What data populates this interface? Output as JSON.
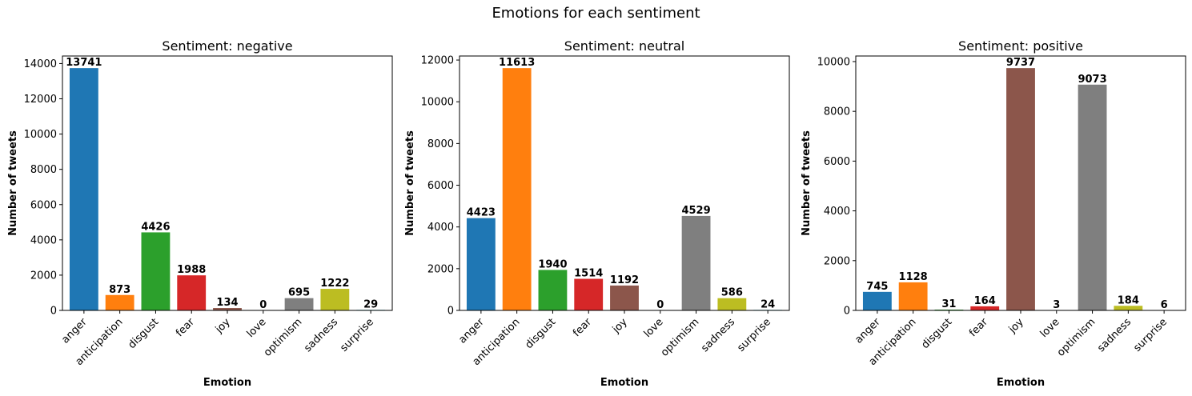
{
  "figure_title": "Emotions for each sentiment",
  "chart_data": [
    {
      "type": "bar",
      "title": "Sentiment: negative",
      "xlabel": "Emotion",
      "ylabel": "Number of tweets",
      "categories": [
        "anger",
        "anticipation",
        "disgust",
        "fear",
        "joy",
        "love",
        "optimism",
        "sadness",
        "surprise"
      ],
      "values": [
        13741,
        873,
        4426,
        1988,
        134,
        0,
        695,
        1222,
        29
      ],
      "ylim": [
        0,
        14428
      ],
      "yticks": [
        0,
        2000,
        4000,
        6000,
        8000,
        10000,
        12000,
        14000
      ],
      "grid": false
    },
    {
      "type": "bar",
      "title": "Sentiment: neutral",
      "xlabel": "Emotion",
      "ylabel": "Number of tweets",
      "categories": [
        "anger",
        "anticipation",
        "disgust",
        "fear",
        "joy",
        "love",
        "optimism",
        "sadness",
        "surprise"
      ],
      "values": [
        4423,
        11613,
        1940,
        1514,
        1192,
        0,
        4529,
        586,
        24
      ],
      "ylim": [
        0,
        12194
      ],
      "yticks": [
        0,
        2000,
        4000,
        6000,
        8000,
        10000,
        12000
      ],
      "grid": false
    },
    {
      "type": "bar",
      "title": "Sentiment: positive",
      "xlabel": "Emotion",
      "ylabel": "Number of tweets",
      "categories": [
        "anger",
        "anticipation",
        "disgust",
        "fear",
        "joy",
        "love",
        "optimism",
        "sadness",
        "surprise"
      ],
      "values": [
        745,
        1128,
        31,
        164,
        9737,
        3,
        9073,
        184,
        6
      ],
      "ylim": [
        0,
        10224
      ],
      "yticks": [
        0,
        2000,
        4000,
        6000,
        8000,
        10000
      ],
      "grid": false
    }
  ],
  "colors": [
    "#1f77b4",
    "#ff7f0e",
    "#2ca02c",
    "#d62728",
    "#8c564b",
    "#e377c2",
    "#7f7f7f",
    "#bcbd22",
    "#17becf"
  ]
}
